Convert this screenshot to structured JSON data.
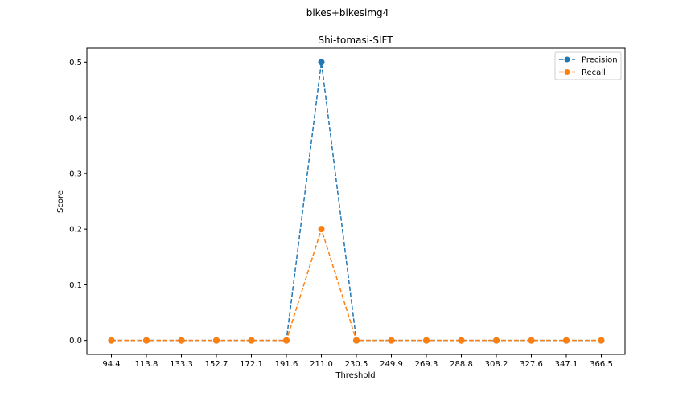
{
  "figure": {
    "suptitle": "bikes+bikesimg4"
  },
  "chart_data": {
    "type": "line",
    "title": "Shi-tomasi-SIFT",
    "xlabel": "Threshold",
    "ylabel": "Score",
    "categories": [
      "94.4",
      "113.8",
      "133.3",
      "152.7",
      "172.1",
      "191.6",
      "211.0",
      "230.5",
      "249.9",
      "269.3",
      "288.8",
      "308.2",
      "327.6",
      "347.1",
      "366.5"
    ],
    "yticks": [
      "0.0",
      "0.1",
      "0.2",
      "0.3",
      "0.4",
      "0.5"
    ],
    "ylim": [
      -0.025,
      0.525
    ],
    "grid": false,
    "legend_position": "top-right",
    "series": [
      {
        "name": "Precision",
        "color": "#1f77b4",
        "linestyle": "dashed",
        "marker": "circle",
        "values": [
          0,
          0,
          0,
          0,
          0,
          0,
          0.5,
          0,
          0,
          0,
          0,
          0,
          0,
          0,
          0
        ]
      },
      {
        "name": "Recall",
        "color": "#ff7f0e",
        "linestyle": "dashed",
        "marker": "circle",
        "values": [
          0,
          0,
          0,
          0,
          0,
          0,
          0.2,
          0,
          0,
          0,
          0,
          0,
          0,
          0,
          0
        ]
      }
    ]
  }
}
